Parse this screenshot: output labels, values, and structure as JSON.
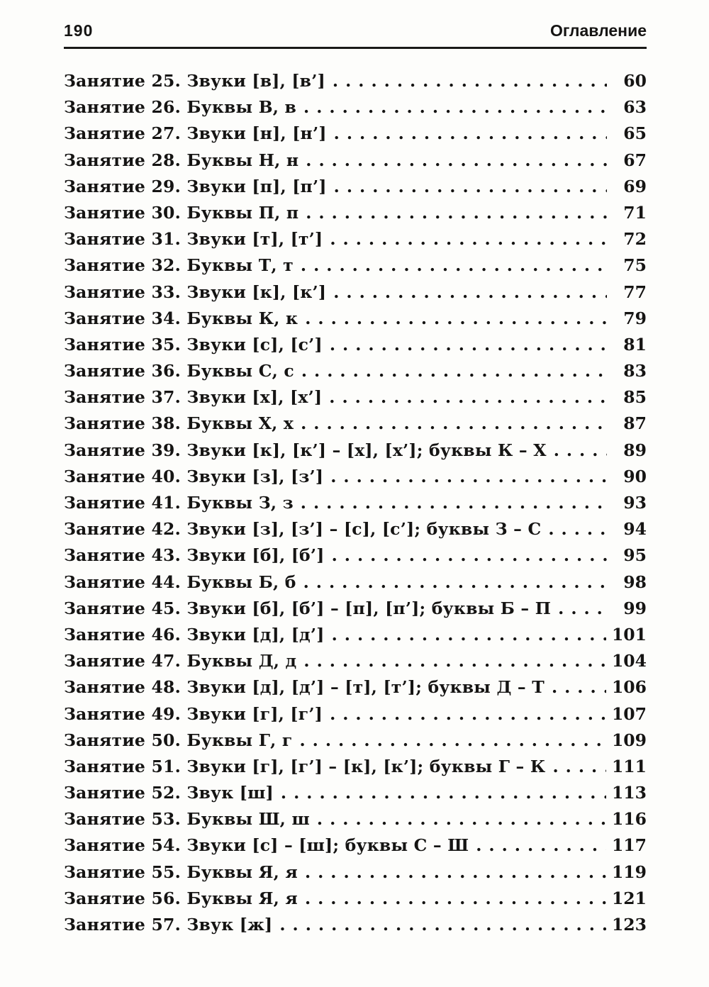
{
  "header": {
    "page_number": "190",
    "title": "Оглавление"
  },
  "toc": {
    "entries": [
      {
        "title": "Занятие 25. Звуки [в], [в’]",
        "page": "60"
      },
      {
        "title": "Занятие 26. Буквы В, в",
        "page": "63"
      },
      {
        "title": "Занятие 27. Звуки [н], [н’]",
        "page": "65"
      },
      {
        "title": "Занятие 28. Буквы Н, н",
        "page": "67"
      },
      {
        "title": "Занятие 29. Звуки [п], [п’]",
        "page": "69"
      },
      {
        "title": "Занятие 30. Буквы П, п",
        "page": "71"
      },
      {
        "title": "Занятие 31. Звуки [т], [т’]",
        "page": "72"
      },
      {
        "title": "Занятие 32. Буквы Т, т",
        "page": "75"
      },
      {
        "title": "Занятие 33. Звуки [к], [к’]",
        "page": "77"
      },
      {
        "title": "Занятие 34. Буквы К, к",
        "page": "79"
      },
      {
        "title": "Занятие 35. Звуки [с], [с’]",
        "page": "81"
      },
      {
        "title": "Занятие 36. Буквы С, с",
        "page": "83"
      },
      {
        "title": "Занятие 37. Звуки [х], [х’]",
        "page": "85"
      },
      {
        "title": "Занятие 38. Буквы Х, х",
        "page": "87"
      },
      {
        "title": "Занятие 39. Звуки [к], [к’] – [х], [х’]; буквы К – Х",
        "page": "89"
      },
      {
        "title": "Занятие 40. Звуки [з], [з’]",
        "page": "90"
      },
      {
        "title": "Занятие 41. Буквы З, з",
        "page": "93"
      },
      {
        "title": "Занятие 42. Звуки [з], [з’] – [с], [с’]; буквы З – С",
        "page": "94"
      },
      {
        "title": "Занятие 43. Звуки [б], [б’]",
        "page": "95"
      },
      {
        "title": "Занятие 44. Буквы Б, б",
        "page": "98"
      },
      {
        "title": "Занятие 45. Звуки [б], [б’] – [п], [п’]; буквы Б – П",
        "page": "99"
      },
      {
        "title": "Занятие 46. Звуки [д], [д’]",
        "page": "101"
      },
      {
        "title": "Занятие 47. Буквы Д, д",
        "page": "104"
      },
      {
        "title": "Занятие 48. Звуки [д], [д’] – [т], [т’]; буквы Д – Т",
        "page": "106"
      },
      {
        "title": "Занятие 49. Звуки [г], [г’]",
        "page": "107"
      },
      {
        "title": "Занятие 50. Буквы Г, г",
        "page": "109"
      },
      {
        "title": "Занятие 51. Звуки [г], [г’] – [к], [к’]; буквы Г – К",
        "page": "111"
      },
      {
        "title": "Занятие 52. Звук [ш]",
        "page": "113"
      },
      {
        "title": "Занятие 53. Буквы Ш, ш",
        "page": "116"
      },
      {
        "title": "Занятие 54. Звуки [с] – [ш]; буквы С – Ш",
        "page": "117"
      },
      {
        "title": "Занятие 55. Буквы Я, я",
        "page": "119"
      },
      {
        "title": "Занятие 56. Буквы Я, я",
        "page": "121"
      },
      {
        "title": "Занятие 57. Звук [ж]",
        "page": "123"
      }
    ]
  }
}
